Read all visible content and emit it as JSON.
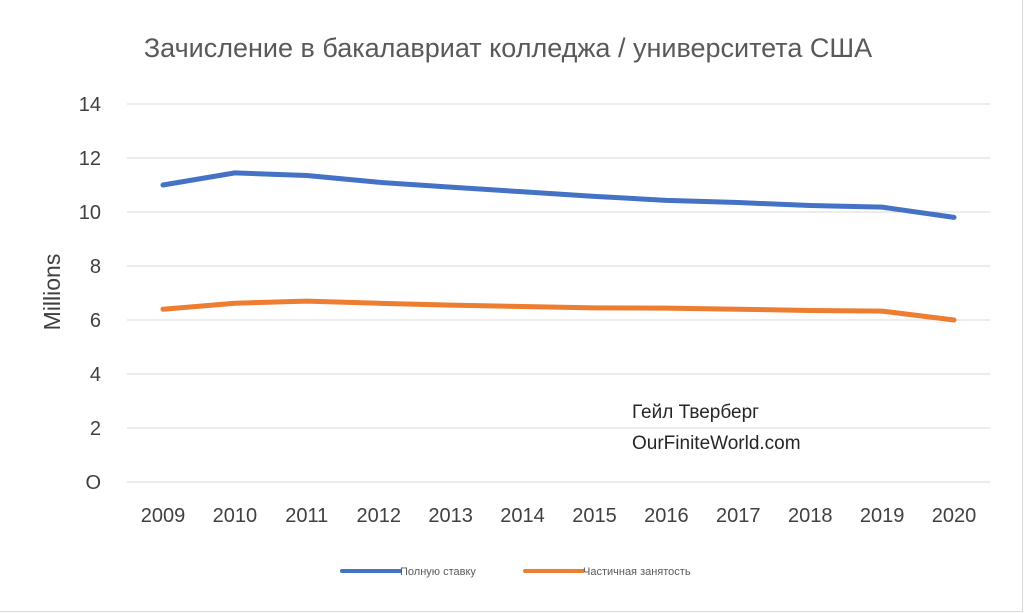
{
  "chart_data": {
    "type": "line",
    "title": "Зачисление в бакалавриат колледжа / университета США",
    "xlabel": "",
    "ylabel": "Millions",
    "categories": [
      "2009",
      "2010",
      "2011",
      "2012",
      "2013",
      "2014",
      "2015",
      "2016",
      "2017",
      "2018",
      "2019",
      "2020"
    ],
    "y_tick_labels": [
      "O",
      "2",
      "4",
      "6",
      "8",
      "10",
      "12",
      "14"
    ],
    "ylim": [
      0,
      14
    ],
    "grid": true,
    "series": [
      {
        "name": "Полную ставку",
        "color": "#4472c4",
        "values": [
          11.0,
          11.45,
          11.35,
          11.1,
          10.92,
          10.75,
          10.58,
          10.43,
          10.35,
          10.24,
          10.18,
          9.8
        ]
      },
      {
        "name": "Частичная занятость",
        "color": "#ed7d31",
        "values": [
          6.4,
          6.62,
          6.7,
          6.62,
          6.55,
          6.5,
          6.45,
          6.44,
          6.4,
          6.35,
          6.33,
          6.0
        ]
      }
    ],
    "legend_position": "bottom",
    "annotations": [
      "Гейл Тверберг",
      "OurFiniteWorld.com"
    ]
  }
}
